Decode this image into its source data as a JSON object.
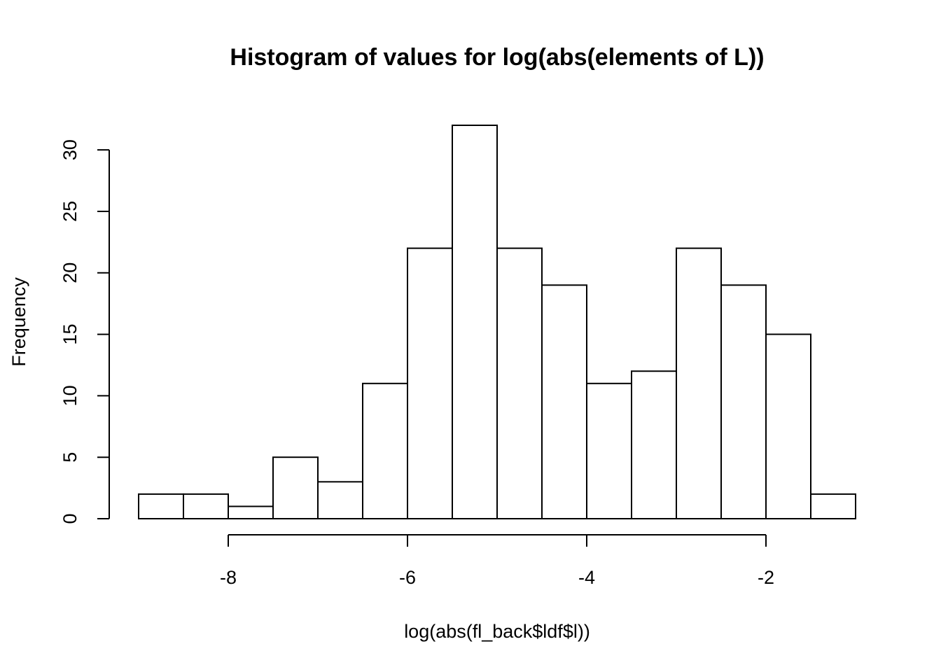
{
  "chart_data": {
    "type": "bar",
    "subtype": "histogram",
    "title": "Histogram of values for log(abs(elements of L))",
    "xlabel": "log(abs(fl_back$ldf$l))",
    "ylabel": "Frequency",
    "bin_edges": [
      -9.0,
      -8.5,
      -8.0,
      -7.5,
      -7.0,
      -6.5,
      -6.0,
      -5.5,
      -5.0,
      -4.5,
      -4.0,
      -3.5,
      -3.0,
      -2.5,
      -2.0,
      -1.5,
      -1.0
    ],
    "values": [
      2,
      2,
      1,
      5,
      3,
      11,
      22,
      32,
      22,
      19,
      11,
      12,
      22,
      19,
      15,
      2
    ],
    "x_ticks": [
      -8,
      -6,
      -4,
      -2
    ],
    "x_tick_labels": [
      "-8",
      "-6",
      "-4",
      "-2"
    ],
    "y_ticks": [
      0,
      5,
      10,
      15,
      20,
      25,
      30
    ],
    "y_tick_labels": [
      "0",
      "5",
      "10",
      "15",
      "20",
      "25",
      "30"
    ],
    "xlim": [
      -9.0,
      -1.0
    ],
    "ylim": [
      0,
      32
    ],
    "grid": false,
    "legend": "none",
    "colors": {
      "bar_fill": "#ffffff",
      "bar_stroke": "#000000"
    }
  }
}
